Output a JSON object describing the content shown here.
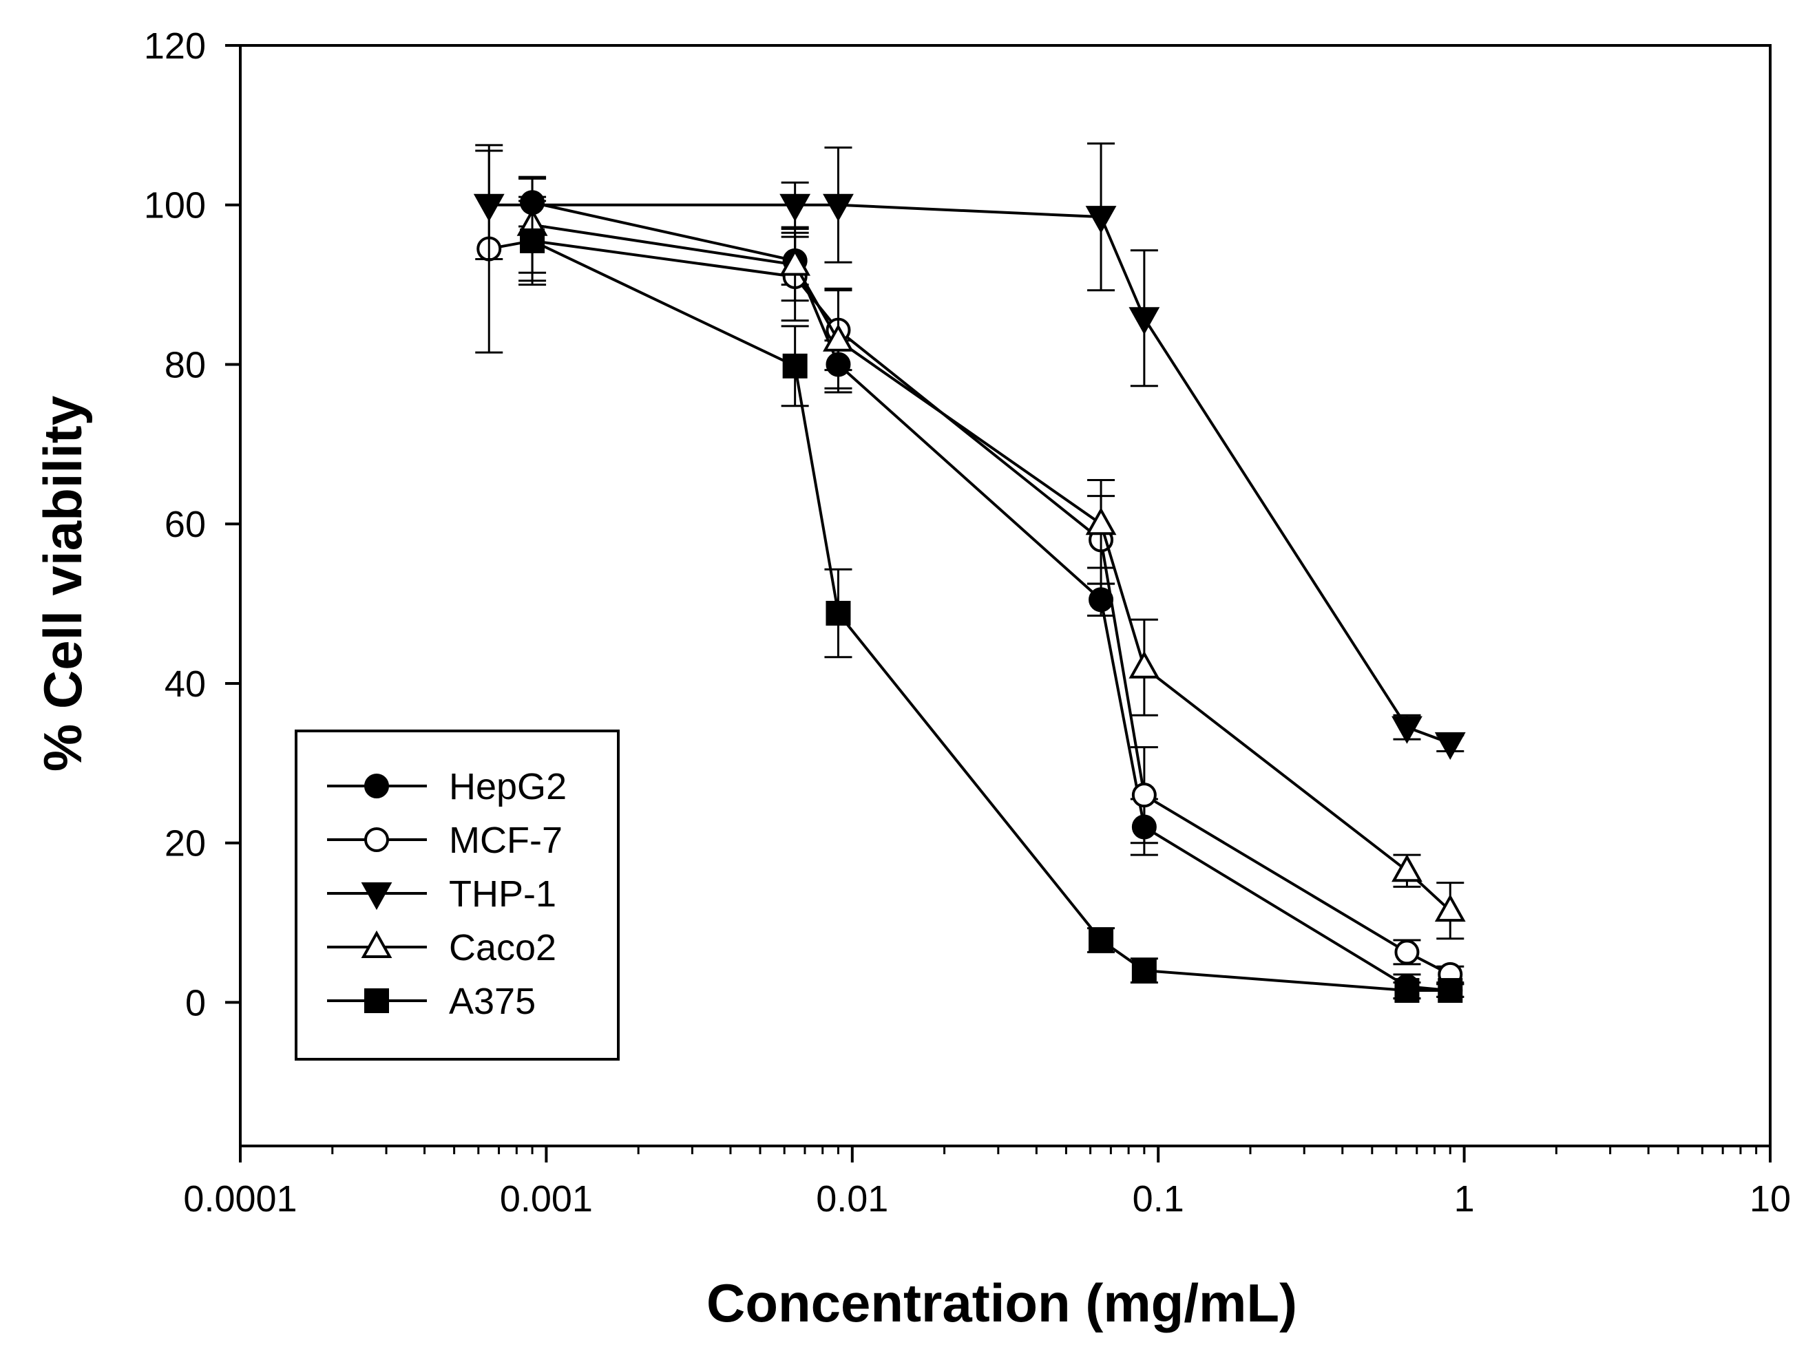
{
  "chart_data": {
    "type": "line",
    "title": "",
    "xlabel": "Concentration (mg/mL)",
    "ylabel": "% Cell viability",
    "xscale": "log",
    "xlim": [
      0.0001,
      10
    ],
    "ylim": [
      -18,
      120
    ],
    "x_ticks": [
      0.0001,
      0.001,
      0.01,
      0.1,
      1,
      10
    ],
    "x_tick_labels": [
      "0.0001",
      "0.001",
      "0.01",
      "0.1",
      "1",
      "10"
    ],
    "y_ticks": [
      0,
      20,
      40,
      60,
      80,
      100,
      120
    ],
    "y_tick_labels": [
      "0",
      "20",
      "40",
      "60",
      "80",
      "100",
      "120"
    ],
    "grid": false,
    "legend_position": "bottom-left",
    "series": [
      {
        "name": "HepG2",
        "marker": "circle",
        "filled": true,
        "x": [
          0.0009,
          0.0065,
          0.009,
          0.065,
          0.09,
          0.65,
          0.9
        ],
        "y": [
          100.3,
          93.0,
          80.0,
          50.5,
          22.0,
          2.0,
          1.5
        ],
        "err": [
          3.0,
          3.0,
          3.0,
          2.0,
          3.5,
          1.5,
          0.8
        ]
      },
      {
        "name": "MCF-7",
        "marker": "circle",
        "filled": false,
        "x": [
          0.00065,
          0.0009,
          0.0065,
          0.009,
          0.065,
          0.09,
          0.65,
          0.9
        ],
        "y": [
          94.5,
          95.5,
          91.0,
          84.3,
          58.0,
          26.0,
          6.3,
          3.5
        ],
        "err": [
          13.0,
          5.0,
          5.5,
          5.0,
          5.5,
          6.0,
          1.5,
          1.0
        ]
      },
      {
        "name": "THP-1",
        "marker": "triangle-down",
        "filled": true,
        "x": [
          0.00065,
          0.0065,
          0.009,
          0.065,
          0.09,
          0.65,
          0.9
        ],
        "y": [
          100.0,
          100.0,
          100.0,
          98.5,
          85.8,
          34.5,
          32.5
        ],
        "err": [
          6.8,
          2.8,
          7.2,
          9.2,
          8.5,
          1.5,
          1.0
        ]
      },
      {
        "name": "Caco2",
        "marker": "triangle-up",
        "filled": false,
        "x": [
          0.0009,
          0.0065,
          0.009,
          0.065,
          0.09,
          0.65,
          0.9
        ],
        "y": [
          97.5,
          92.5,
          83.0,
          60.0,
          42.0,
          16.5,
          11.5
        ],
        "err": [
          6.0,
          4.5,
          6.5,
          5.5,
          6.0,
          2.0,
          3.5
        ]
      },
      {
        "name": "A375",
        "marker": "square",
        "filled": true,
        "x": [
          0.0009,
          0.0065,
          0.009,
          0.065,
          0.09,
          0.65,
          0.9
        ],
        "y": [
          95.5,
          79.8,
          48.8,
          7.8,
          4.0,
          1.5,
          1.5
        ],
        "err": [
          5.5,
          5.0,
          5.5,
          1.5,
          1.5,
          1.0,
          0.8
        ]
      }
    ]
  }
}
